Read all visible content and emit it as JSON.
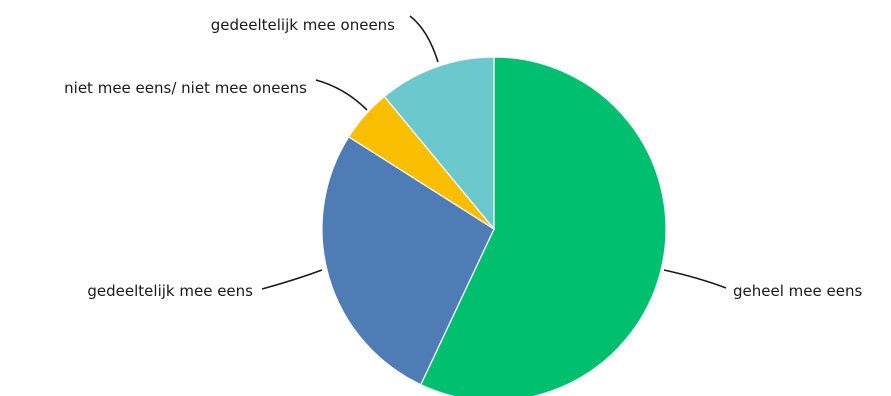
{
  "chart_data": {
    "type": "pie",
    "start_angle_deg": 0,
    "direction": "clockwise",
    "slices": [
      {
        "label": "geheel mee eens",
        "value": 57,
        "color": "#00bf6f"
      },
      {
        "label": "gedeeltelijk mee eens",
        "value": 27,
        "color": "#507cb6"
      },
      {
        "label": "niet mee eens/ niet mee oneens",
        "value": 5,
        "color": "#f9be00"
      },
      {
        "label": "gedeeltelijk mee oneens",
        "value": 11,
        "color": "#6bc8cd"
      }
    ]
  }
}
